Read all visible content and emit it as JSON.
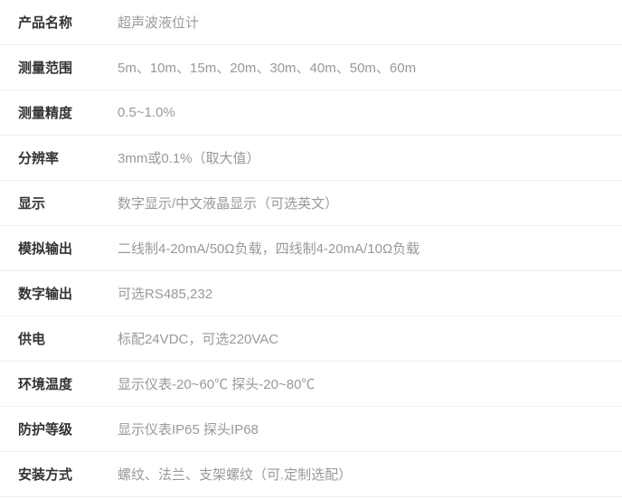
{
  "specs": [
    {
      "label": "产品名称",
      "value": "超声波液位计"
    },
    {
      "label": "测量范围",
      "value": "5m、10m、15m、20m、30m、40m、50m、60m"
    },
    {
      "label": "测量精度",
      "value": "0.5~1.0%"
    },
    {
      "label": "分辨率",
      "value": "3mm或0.1%（取大值）"
    },
    {
      "label": "显示",
      "value": "数字显示/中文液晶显示（可选英文）"
    },
    {
      "label": "模拟输出",
      "value": "二线制4-20mA/50Ω负载，四线制4-20mA/10Ω负载"
    },
    {
      "label": "数字输出",
      "value": "可选RS485,232"
    },
    {
      "label": "供电",
      "value": "标配24VDC，可选220VAC"
    },
    {
      "label": "环境温度",
      "value": "显示仪表-20~60℃ 探头-20~80℃"
    },
    {
      "label": "防护等级",
      "value": "显示仪表IP65 探头IP68"
    },
    {
      "label": "安装方式",
      "value": "螺纹、法兰、支架螺纹（可.定制选配）"
    }
  ],
  "styling": {
    "row_border_color": "#eeeeee",
    "label_color": "#333333",
    "value_color": "#999999",
    "background_color": "#ffffff",
    "label_fontsize": 15,
    "value_fontsize": 15,
    "label_fontweight": 600,
    "label_width": 110,
    "row_padding_v": 14,
    "row_padding_h": 20,
    "row_min_height": 50
  }
}
